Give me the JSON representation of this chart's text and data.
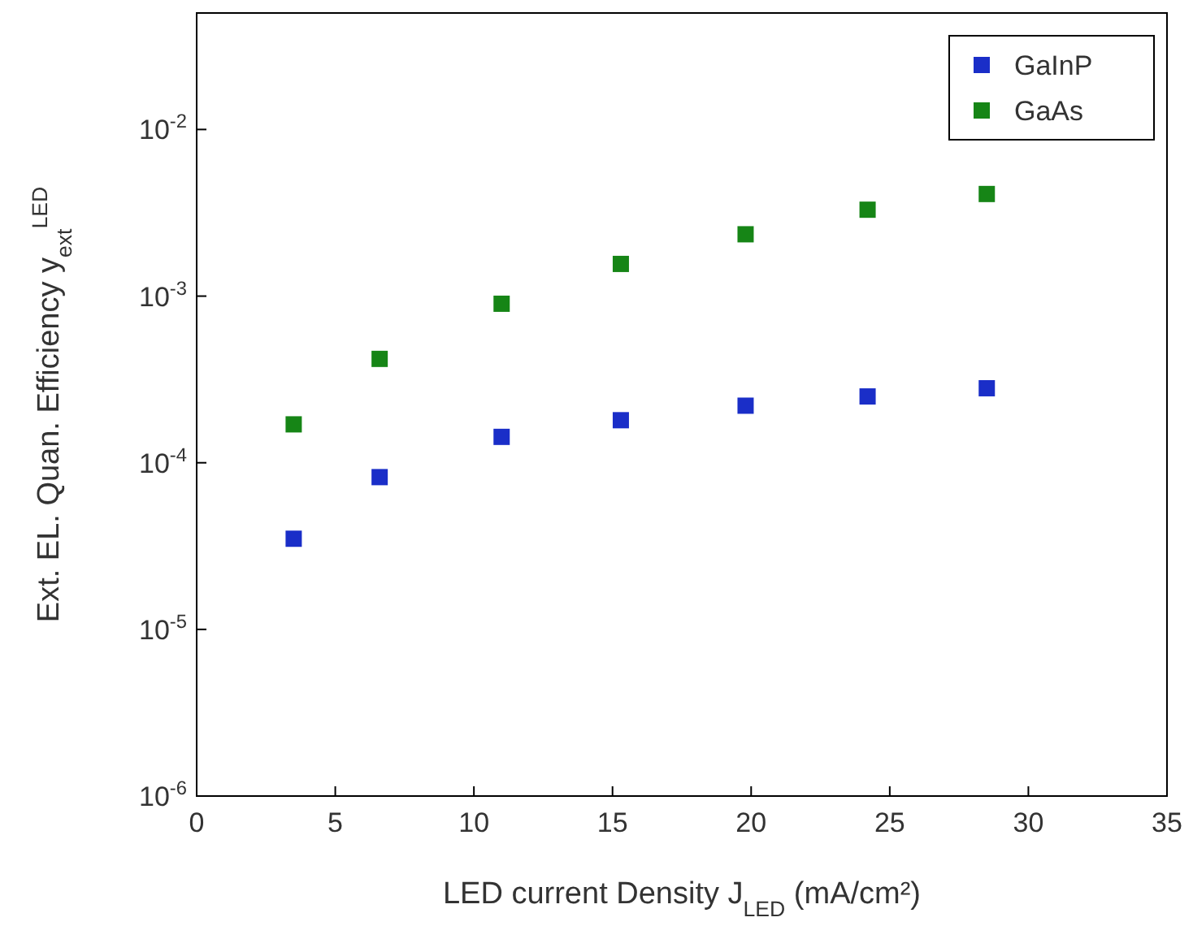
{
  "chart_data": {
    "type": "scatter",
    "xlabel": "LED current Density J$_{LED}$ (mA/cm²)",
    "ylabel": "Ext. EL. Quan. Efficiency y$_{ext}$$^{LED}$",
    "x": [
      3.5,
      6.6,
      11,
      15.3,
      19.8,
      24.2,
      28.5
    ],
    "series": [
      {
        "name": "GaInP",
        "color": "#1a2ec8",
        "values": [
          3.5e-05,
          8.2e-05,
          0.000143,
          0.00018,
          0.00022,
          0.00025,
          0.00028
        ]
      },
      {
        "name": "GaAs",
        "color": "#168516",
        "values": [
          0.00017,
          0.00042,
          0.0009,
          0.00156,
          0.00235,
          0.0033,
          0.0041
        ]
      }
    ],
    "log": "y",
    "xlim": [
      0,
      35
    ],
    "xticks": [
      0,
      5,
      10,
      15,
      20,
      25,
      30,
      35
    ],
    "ylim": [
      1e-06,
      0.05
    ],
    "yticks": [
      {
        "value": 1e-06,
        "label": "10$^{-6}$"
      },
      {
        "value": 1e-05,
        "label": "10$^{-5}$"
      },
      {
        "value": 0.0001,
        "label": "10$^{-4}$"
      },
      {
        "value": 0.001,
        "label": "10$^{-3}$"
      },
      {
        "value": 0.01,
        "label": "10$^{-2}$"
      }
    ],
    "marker": "square",
    "legend": "top right",
    "grid": false
  }
}
